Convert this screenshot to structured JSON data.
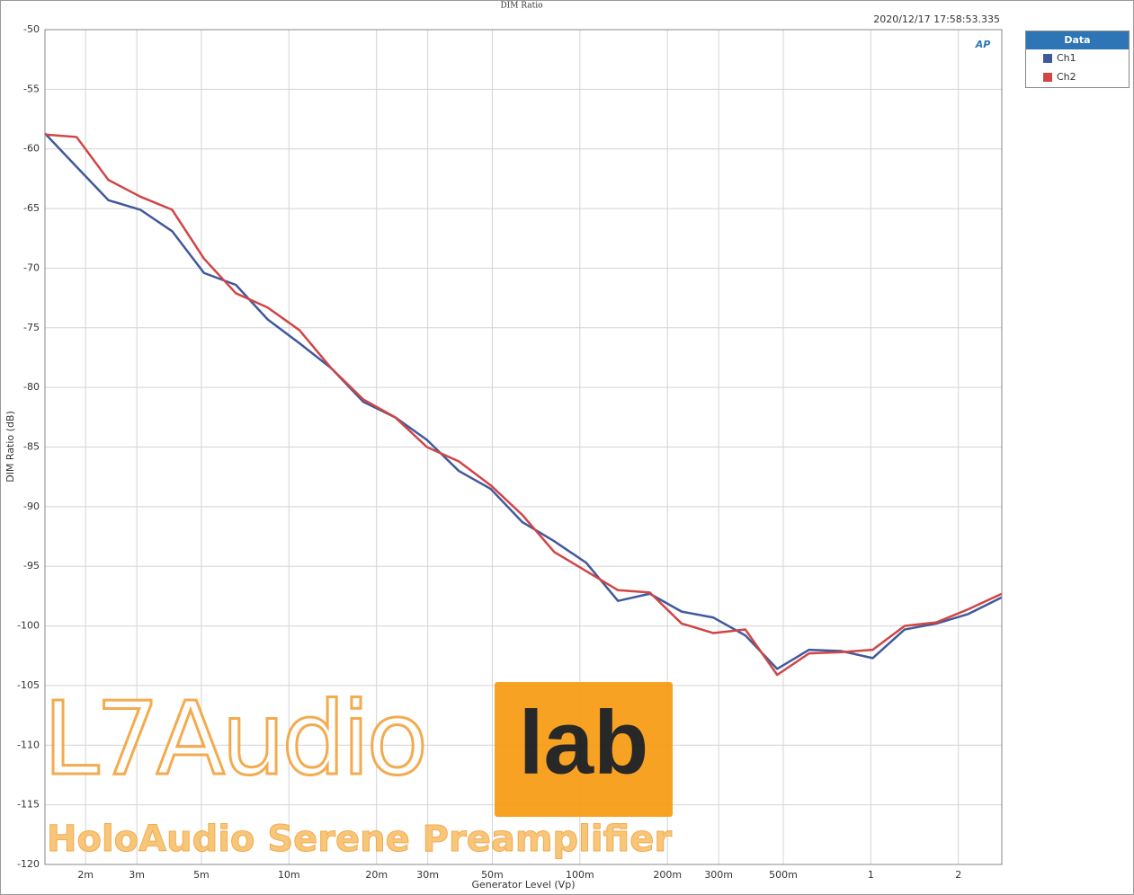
{
  "chart_data": {
    "type": "line",
    "title": "DIM Ratio",
    "timestamp": "2020/12/17 17:58:53.335",
    "logo": "AP",
    "xlabel": "Generator Level (Vp)",
    "ylabel": "DIM Ratio (dB)",
    "legend_title": "Data",
    "legend": "outside-right",
    "xscale": "log",
    "grid": true,
    "xlim": [
      0.00145,
      2.82
    ],
    "ylim": [
      -120,
      -50
    ],
    "xticks": [
      {
        "value": 0.002,
        "label": "2m"
      },
      {
        "value": 0.003,
        "label": "3m"
      },
      {
        "value": 0.005,
        "label": "5m"
      },
      {
        "value": 0.01,
        "label": "10m"
      },
      {
        "value": 0.02,
        "label": "20m"
      },
      {
        "value": 0.03,
        "label": "30m"
      },
      {
        "value": 0.05,
        "label": "50m"
      },
      {
        "value": 0.1,
        "label": "100m"
      },
      {
        "value": 0.2,
        "label": "200m"
      },
      {
        "value": 0.3,
        "label": "300m"
      },
      {
        "value": 0.5,
        "label": "500m"
      },
      1,
      2
    ],
    "yticks": [
      -50,
      -55,
      -60,
      -65,
      -70,
      -75,
      -80,
      -85,
      -90,
      -95,
      -100,
      -105,
      -110,
      -115,
      -120
    ],
    "x": [
      0.00145,
      0.001862,
      0.002395,
      0.003083,
      0.003967,
      0.005104,
      0.006568,
      0.008451,
      0.01087,
      0.01399,
      0.018,
      0.02316,
      0.0298,
      0.03835,
      0.04932,
      0.06346,
      0.08166,
      0.1051,
      0.1352,
      0.1739,
      0.2238,
      0.2879,
      0.3705,
      0.4767,
      0.6134,
      0.7893,
      1.015,
      1.306,
      1.681,
      2.163,
      2.82
    ],
    "series": [
      {
        "name": "Ch1",
        "color": "#40599c",
        "values": [
          -58.7,
          -61.5,
          -64.3,
          -65.1,
          -66.9,
          -70.4,
          -71.4,
          -74.3,
          -76.3,
          -78.4,
          -81.2,
          -82.5,
          -84.4,
          -87.0,
          -88.5,
          -91.3,
          -92.9,
          -94.7,
          -97.9,
          -97.3,
          -98.8,
          -99.3,
          -100.8,
          -103.6,
          -102.0,
          -102.1,
          -102.7,
          -100.3,
          -99.8,
          -99.0,
          -97.6
        ]
      },
      {
        "name": "Ch2",
        "color": "#d04545",
        "values": [
          -58.8,
          -59.0,
          -62.6,
          -64.0,
          -65.1,
          -69.2,
          -72.1,
          -73.3,
          -75.2,
          -78.4,
          -81.0,
          -82.5,
          -85.0,
          -86.2,
          -88.2,
          -90.7,
          -93.8,
          -95.4,
          -97.0,
          -97.2,
          -99.8,
          -100.6,
          -100.3,
          -104.1,
          -102.3,
          -102.2,
          -102.0,
          -100.0,
          -99.7,
          -98.6,
          -97.3
        ]
      }
    ],
    "watermark": {
      "brand": "L7Audio",
      "brand_box": "lab",
      "caption": "HoloAudio Serene Preamplifier"
    }
  }
}
